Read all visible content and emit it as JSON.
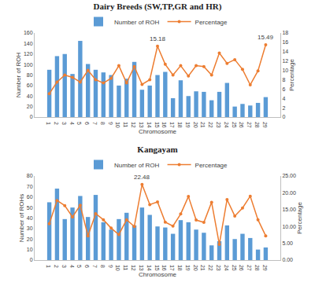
{
  "chart_data": [
    {
      "type": "bar",
      "title": "Dairy Breeds (SW,TP,GR and HR)",
      "x_label": "Chromosome",
      "y_label": "Number of ROH",
      "y2_label": "Percentage",
      "categories": [
        "1",
        "2",
        "3",
        "4",
        "5",
        "6",
        "7",
        "8",
        "9",
        "10",
        "11",
        "12",
        "13",
        "14",
        "15",
        "16",
        "17",
        "18",
        "19",
        "20",
        "21",
        "22",
        "23",
        "24",
        "25",
        "26",
        "27",
        "28",
        "29"
      ],
      "series": [
        {
          "name": "Number of ROH",
          "type": "bar",
          "color": "#5b9bd5",
          "values": [
            90,
            116,
            120,
            82,
            145,
            101,
            90,
            85,
            80,
            60,
            73,
            105,
            52,
            60,
            80,
            86,
            36,
            70,
            40,
            49,
            48,
            32,
            48,
            65,
            20,
            25,
            22,
            27,
            38
          ]
        },
        {
          "name": "Percentage",
          "type": "line",
          "axis": "y2",
          "color": "#ed7d31",
          "marker": "circle",
          "values": [
            5,
            7.5,
            9,
            8.5,
            7.5,
            10,
            8,
            7.3,
            8.3,
            11,
            7.3,
            10.8,
            7,
            8,
            15.18,
            11.3,
            9,
            11,
            8.8,
            11,
            10.8,
            9,
            13.7,
            11.5,
            12.3,
            10.2,
            6.9,
            9.9,
            15.49
          ]
        }
      ],
      "annotations": [
        {
          "text": "15.18",
          "x": "15",
          "y": 15.18,
          "axis": "y2"
        },
        {
          "text": "15.49",
          "x": "29",
          "y": 15.49,
          "axis": "y2"
        }
      ],
      "ylim": [
        0,
        160
      ],
      "yticks": [
        0,
        20,
        40,
        60,
        80,
        100,
        120,
        140,
        160
      ],
      "y2lim": [
        0,
        18
      ],
      "y2ticks": [
        0,
        2,
        4,
        6,
        8,
        10,
        12,
        14,
        16,
        18
      ],
      "grid": false,
      "legend": "top"
    },
    {
      "type": "bar",
      "title": "Kangayam",
      "x_label": "Chromosome",
      "y_label": "Number of ROHs",
      "y2_label": "Percentage",
      "categories": [
        "1",
        "2",
        "3",
        "4",
        "5",
        "6",
        "7",
        "8",
        "9",
        "10",
        "11",
        "12",
        "13",
        "14",
        "15",
        "16",
        "17",
        "18",
        "19",
        "20",
        "21",
        "22",
        "23",
        "24",
        "25",
        "26",
        "27",
        "28",
        "29"
      ],
      "series": [
        {
          "name": "Number of ROH",
          "type": "bar",
          "color": "#5b9bd5",
          "values": [
            55,
            68,
            39,
            50,
            61,
            41,
            62,
            36,
            29,
            39,
            45,
            33,
            50,
            43,
            32,
            31,
            25,
            38,
            36,
            29,
            26,
            14,
            18,
            33,
            20,
            25,
            21,
            10,
            12
          ]
        },
        {
          "name": "Percentage",
          "type": "line",
          "axis": "y2",
          "color": "#ed7d31",
          "marker": "circle",
          "values": [
            10.8,
            17.7,
            16.2,
            12.8,
            16.3,
            7.2,
            13.8,
            12,
            9.5,
            7.6,
            12,
            10,
            22.48,
            16.5,
            17.3,
            11.3,
            10.1,
            13.7,
            18.9,
            11.9,
            11.2,
            17.2,
            4.7,
            18,
            13.1,
            15.5,
            19,
            12,
            7.2
          ]
        }
      ],
      "annotations": [
        {
          "text": "22.48",
          "x": "13",
          "y": 22.48,
          "axis": "y2"
        }
      ],
      "ylim": [
        0,
        80
      ],
      "yticks": [
        0,
        10,
        20,
        30,
        40,
        50,
        60,
        70,
        80
      ],
      "y2lim": [
        0,
        25
      ],
      "y2ticks": [
        {
          "value": 0,
          "label": "0.00"
        },
        {
          "value": 5,
          "label": "5.00"
        },
        {
          "value": 10,
          "label": "10.00"
        },
        {
          "value": 15,
          "label": "15.00"
        },
        {
          "value": 20,
          "label": "20.00"
        },
        {
          "value": 25,
          "label": "25.00"
        }
      ],
      "grid": false,
      "legend": "top"
    }
  ]
}
